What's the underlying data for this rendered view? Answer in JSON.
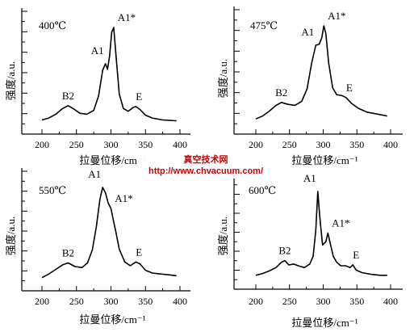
{
  "chart_data": [
    {
      "type": "line",
      "title": "400℃",
      "xlabel": "拉曼位移/cm⁻¹",
      "ylabel": "强度/a.u.",
      "xlim": [
        200,
        400
      ],
      "xticks": [
        200,
        250,
        300,
        350,
        400
      ],
      "series": [
        {
          "points": [
            [
              200,
              0.03
            ],
            [
              210,
              0.05
            ],
            [
              220,
              0.09
            ],
            [
              230,
              0.15
            ],
            [
              238,
              0.18
            ],
            [
              245,
              0.15
            ],
            [
              255,
              0.1
            ],
            [
              265,
              0.09
            ],
            [
              275,
              0.13
            ],
            [
              282,
              0.28
            ],
            [
              288,
              0.55
            ],
            [
              292,
              0.62
            ],
            [
              295,
              0.56
            ],
            [
              298,
              0.7
            ],
            [
              301,
              0.95
            ],
            [
              304,
              1.0
            ],
            [
              308,
              0.65
            ],
            [
              312,
              0.3
            ],
            [
              318,
              0.15
            ],
            [
              325,
              0.12
            ],
            [
              332,
              0.16
            ],
            [
              336,
              0.17
            ],
            [
              342,
              0.14
            ],
            [
              350,
              0.08
            ],
            [
              360,
              0.05
            ],
            [
              375,
              0.03
            ],
            [
              395,
              0.02
            ]
          ]
        }
      ],
      "annotations": [
        {
          "text": "B2",
          "x": 238
        },
        {
          "text": "A1",
          "x": 292
        },
        {
          "text": "A1*",
          "x": 304
        },
        {
          "text": "E",
          "x": 336
        }
      ]
    },
    {
      "type": "line",
      "title": "475℃",
      "xlabel": "拉曼位移/cm⁻¹",
      "ylabel": "强度/a.u.",
      "xlim": [
        200,
        400
      ],
      "xticks": [
        200,
        250,
        300,
        350,
        400
      ],
      "series": [
        {
          "points": [
            [
              200,
              0.04
            ],
            [
              210,
              0.07
            ],
            [
              220,
              0.12
            ],
            [
              230,
              0.18
            ],
            [
              238,
              0.21
            ],
            [
              248,
              0.19
            ],
            [
              258,
              0.18
            ],
            [
              268,
              0.22
            ],
            [
              276,
              0.35
            ],
            [
              283,
              0.62
            ],
            [
              289,
              0.8
            ],
            [
              294,
              0.81
            ],
            [
              298,
              0.88
            ],
            [
              301,
              1.0
            ],
            [
              304,
              0.92
            ],
            [
              308,
              0.62
            ],
            [
              314,
              0.36
            ],
            [
              320,
              0.29
            ],
            [
              328,
              0.28
            ],
            [
              334,
              0.26
            ],
            [
              342,
              0.2
            ],
            [
              352,
              0.15
            ],
            [
              365,
              0.11
            ],
            [
              380,
              0.09
            ],
            [
              395,
              0.07
            ]
          ]
        }
      ],
      "annotations": [
        {
          "text": "B2",
          "x": 238
        },
        {
          "text": "A1",
          "x": 289
        },
        {
          "text": "A1*",
          "x": 301
        },
        {
          "text": "E",
          "x": 334
        }
      ]
    },
    {
      "type": "line",
      "title": "550℃",
      "xlabel": "拉曼位移/cm⁻¹",
      "ylabel": "强度/a.u.",
      "xlim": [
        200,
        400
      ],
      "xticks": [
        200,
        250,
        300,
        350,
        400
      ],
      "series": [
        {
          "points": [
            [
              200,
              0.02
            ],
            [
              210,
              0.06
            ],
            [
              220,
              0.11
            ],
            [
              230,
              0.16
            ],
            [
              238,
              0.18
            ],
            [
              248,
              0.14
            ],
            [
              258,
              0.13
            ],
            [
              266,
              0.18
            ],
            [
              273,
              0.32
            ],
            [
              279,
              0.58
            ],
            [
              284,
              0.87
            ],
            [
              288,
              1.0
            ],
            [
              292,
              0.94
            ],
            [
              296,
              0.83
            ],
            [
              300,
              0.77
            ],
            [
              303,
              0.66
            ],
            [
              307,
              0.52
            ],
            [
              312,
              0.33
            ],
            [
              320,
              0.19
            ],
            [
              328,
              0.15
            ],
            [
              336,
              0.19
            ],
            [
              342,
              0.17
            ],
            [
              350,
              0.1
            ],
            [
              360,
              0.07
            ],
            [
              372,
              0.06
            ],
            [
              385,
              0.05
            ],
            [
              395,
              0.04
            ]
          ]
        }
      ],
      "annotations": [
        {
          "text": "B2",
          "x": 238
        },
        {
          "text": "A1",
          "x": 288
        },
        {
          "text": "A1*",
          "x": 300
        },
        {
          "text": "E",
          "x": 336
        }
      ]
    },
    {
      "type": "line",
      "title": "600℃",
      "xlabel": "拉曼位移/cm⁻¹",
      "ylabel": "强度/a.u.",
      "xlim": [
        200,
        400
      ],
      "xticks": [
        200,
        250,
        300,
        350,
        400
      ],
      "series": [
        {
          "points": [
            [
              200,
              0.03
            ],
            [
              210,
              0.05
            ],
            [
              220,
              0.08
            ],
            [
              230,
              0.12
            ],
            [
              238,
              0.18
            ],
            [
              243,
              0.2
            ],
            [
              249,
              0.15
            ],
            [
              256,
              0.16
            ],
            [
              263,
              0.14
            ],
            [
              272,
              0.12
            ],
            [
              280,
              0.16
            ],
            [
              285,
              0.25
            ],
            [
              289,
              0.55
            ],
            [
              292,
              1.0
            ],
            [
              295,
              0.7
            ],
            [
              299,
              0.38
            ],
            [
              304,
              0.42
            ],
            [
              307,
              0.52
            ],
            [
              310,
              0.41
            ],
            [
              315,
              0.25
            ],
            [
              320,
              0.18
            ],
            [
              326,
              0.14
            ],
            [
              333,
              0.14
            ],
            [
              340,
              0.12
            ],
            [
              344,
              0.15
            ],
            [
              349,
              0.09
            ],
            [
              358,
              0.06
            ],
            [
              372,
              0.04
            ],
            [
              385,
              0.03
            ],
            [
              395,
              0.03
            ]
          ]
        }
      ],
      "annotations": [
        {
          "text": "B2",
          "x": 243
        },
        {
          "text": "A1",
          "x": 292
        },
        {
          "text": "A1*",
          "x": 307
        },
        {
          "text": "E",
          "x": 344
        }
      ]
    }
  ],
  "watermark": {
    "line1": "真空技术网",
    "line2": "http://www.chvacuum.com/"
  }
}
